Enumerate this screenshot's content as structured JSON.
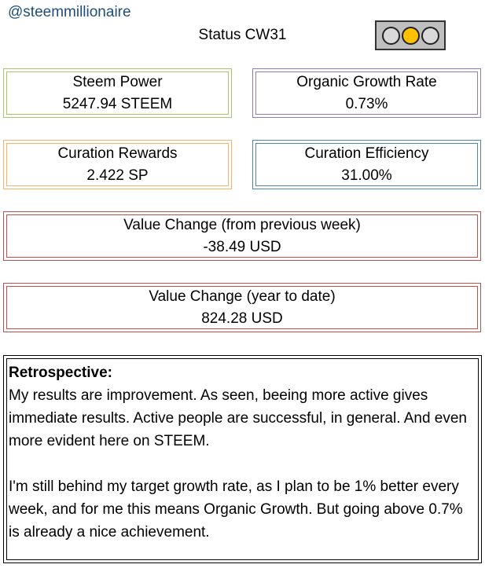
{
  "header": {
    "handle": "@steemmillionaire",
    "status_title": "Status CW31"
  },
  "traffic_light": {
    "lamps": [
      {
        "color": "#d9d9d9"
      },
      {
        "color": "#ffc000"
      },
      {
        "color": "#d9d9d9"
      }
    ]
  },
  "metrics": {
    "steem_power": {
      "label": "Steem Power",
      "value": "5247.94 STEEM",
      "color": "#a9c46c"
    },
    "organic_growth": {
      "label": "Organic Growth Rate",
      "value": "0.73%",
      "color": "#8e7cc3"
    },
    "curation_rewards": {
      "label": "Curation Rewards",
      "value": "2.422 SP",
      "color": "#f6b26b"
    },
    "curation_efficiency": {
      "label": "Curation Efficiency",
      "value": "31.00%",
      "color": "#4a86b8"
    },
    "value_change_week": {
      "label": "Value Change (from previous week)",
      "value": "-38.49 USD",
      "color": "#c0504d"
    },
    "value_change_ytd": {
      "label": "Value Change (year to date)",
      "value": "824.28 USD",
      "color": "#c0504d"
    }
  },
  "retrospective": {
    "heading": "Retrospective:",
    "paragraph_1": "My results are improvement. As seen, beeing more active gives immediate results. Active people are successful, in general. And even more evident here on STEEM.",
    "paragraph_2": "I'm still behind my target growth rate, as I plan to be 1% better every week, and for me this means Organic Growth. But going above 0.7% is already a nice achievement."
  }
}
